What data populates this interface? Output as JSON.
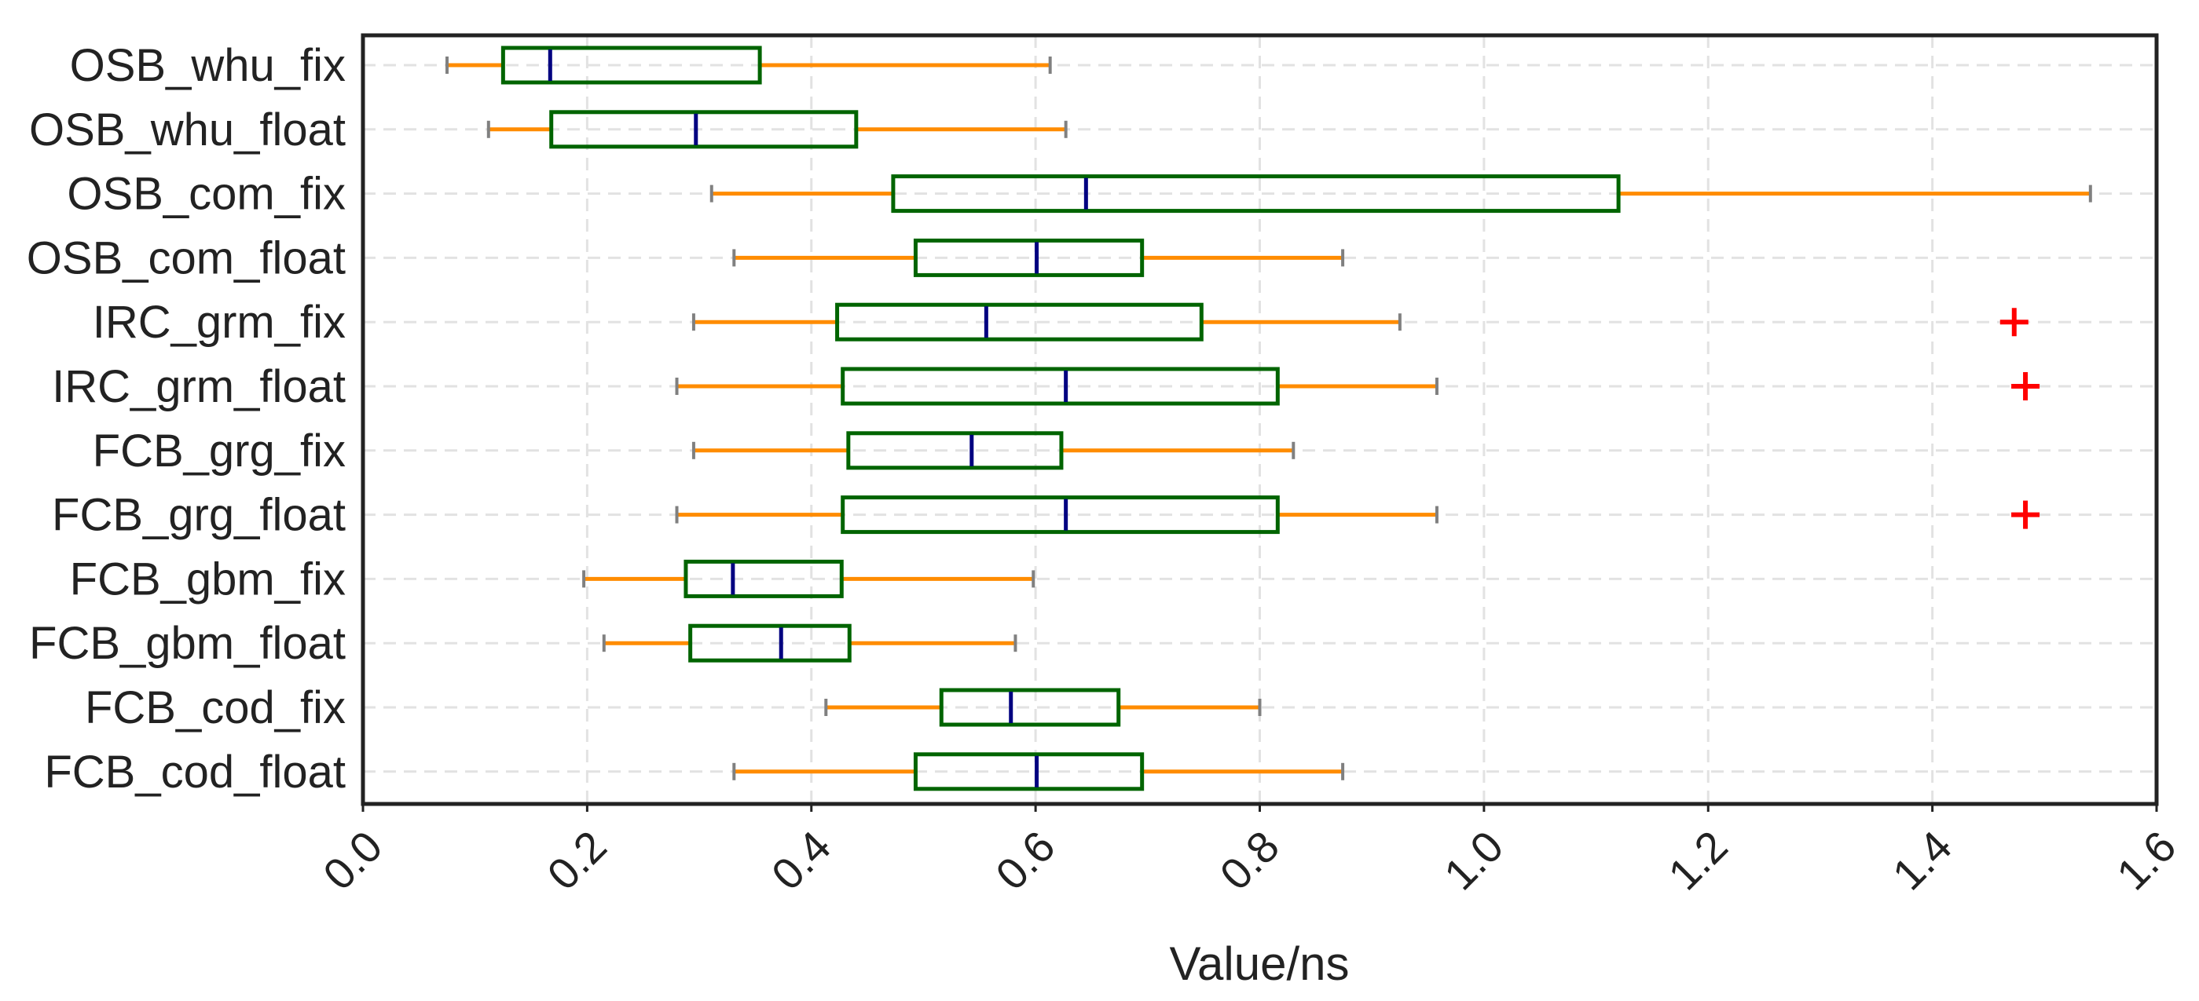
{
  "chart_data": {
    "type": "boxplot",
    "orientation": "horizontal",
    "title": "",
    "xlabel": "Value/ns",
    "ylabel": "",
    "xlim": [
      0.0,
      1.6
    ],
    "x_ticks": [
      0.0,
      0.2,
      0.4,
      0.6,
      0.8,
      1.0,
      1.2,
      1.4,
      1.6
    ],
    "x_tick_labels": [
      "0.0",
      "0.2",
      "0.4",
      "0.6",
      "0.8",
      "1.0",
      "1.2",
      "1.4",
      "1.6"
    ],
    "grid": true,
    "categories": [
      "OSB_whu_fix",
      "OSB_whu_float",
      "OSB_com_fix",
      "OSB_com_float",
      "IRC_grm_fix",
      "IRC_grm_float",
      "FCB_grg_fix",
      "FCB_grg_float",
      "FCB_gbm_fix",
      "FCB_gbm_float",
      "FCB_cod_fix",
      "FCB_cod_float"
    ],
    "boxes": [
      {
        "name": "OSB_whu_fix",
        "whisker_low": 0.075,
        "q1": 0.125,
        "median": 0.167,
        "q3": 0.354,
        "whisker_high": 0.613,
        "outliers": []
      },
      {
        "name": "OSB_whu_float",
        "whisker_low": 0.112,
        "q1": 0.168,
        "median": 0.297,
        "q3": 0.44,
        "whisker_high": 0.627,
        "outliers": []
      },
      {
        "name": "OSB_com_fix",
        "whisker_low": 0.311,
        "q1": 0.473,
        "median": 0.645,
        "q3": 1.12,
        "whisker_high": 1.541,
        "outliers": []
      },
      {
        "name": "OSB_com_float",
        "whisker_low": 0.331,
        "q1": 0.493,
        "median": 0.601,
        "q3": 0.695,
        "whisker_high": 0.874,
        "outliers": []
      },
      {
        "name": "IRC_grm_fix",
        "whisker_low": 0.295,
        "q1": 0.423,
        "median": 0.556,
        "q3": 0.748,
        "whisker_high": 0.925,
        "outliers": [
          1.473
        ]
      },
      {
        "name": "IRC_grm_float",
        "whisker_low": 0.28,
        "q1": 0.428,
        "median": 0.627,
        "q3": 0.816,
        "whisker_high": 0.958,
        "outliers": [
          1.483
        ]
      },
      {
        "name": "FCB_grg_fix",
        "whisker_low": 0.295,
        "q1": 0.433,
        "median": 0.543,
        "q3": 0.623,
        "whisker_high": 0.83,
        "outliers": []
      },
      {
        "name": "FCB_grg_float",
        "whisker_low": 0.28,
        "q1": 0.428,
        "median": 0.627,
        "q3": 0.816,
        "whisker_high": 0.958,
        "outliers": [
          1.483
        ]
      },
      {
        "name": "FCB_gbm_fix",
        "whisker_low": 0.197,
        "q1": 0.288,
        "median": 0.33,
        "q3": 0.427,
        "whisker_high": 0.598,
        "outliers": []
      },
      {
        "name": "FCB_gbm_float",
        "whisker_low": 0.215,
        "q1": 0.292,
        "median": 0.373,
        "q3": 0.434,
        "whisker_high": 0.582,
        "outliers": []
      },
      {
        "name": "FCB_cod_fix",
        "whisker_low": 0.413,
        "q1": 0.516,
        "median": 0.578,
        "q3": 0.674,
        "whisker_high": 0.8,
        "outliers": []
      },
      {
        "name": "FCB_cod_float",
        "whisker_low": 0.331,
        "q1": 0.493,
        "median": 0.601,
        "q3": 0.695,
        "whisker_high": 0.874,
        "outliers": []
      }
    ],
    "colors": {
      "box": "#006400",
      "median": "#000080",
      "whisker": "#FF8C00",
      "cap": "#808080",
      "outlier": "#FF0000",
      "grid": "#E2E2E2",
      "frame": "#222222"
    }
  }
}
